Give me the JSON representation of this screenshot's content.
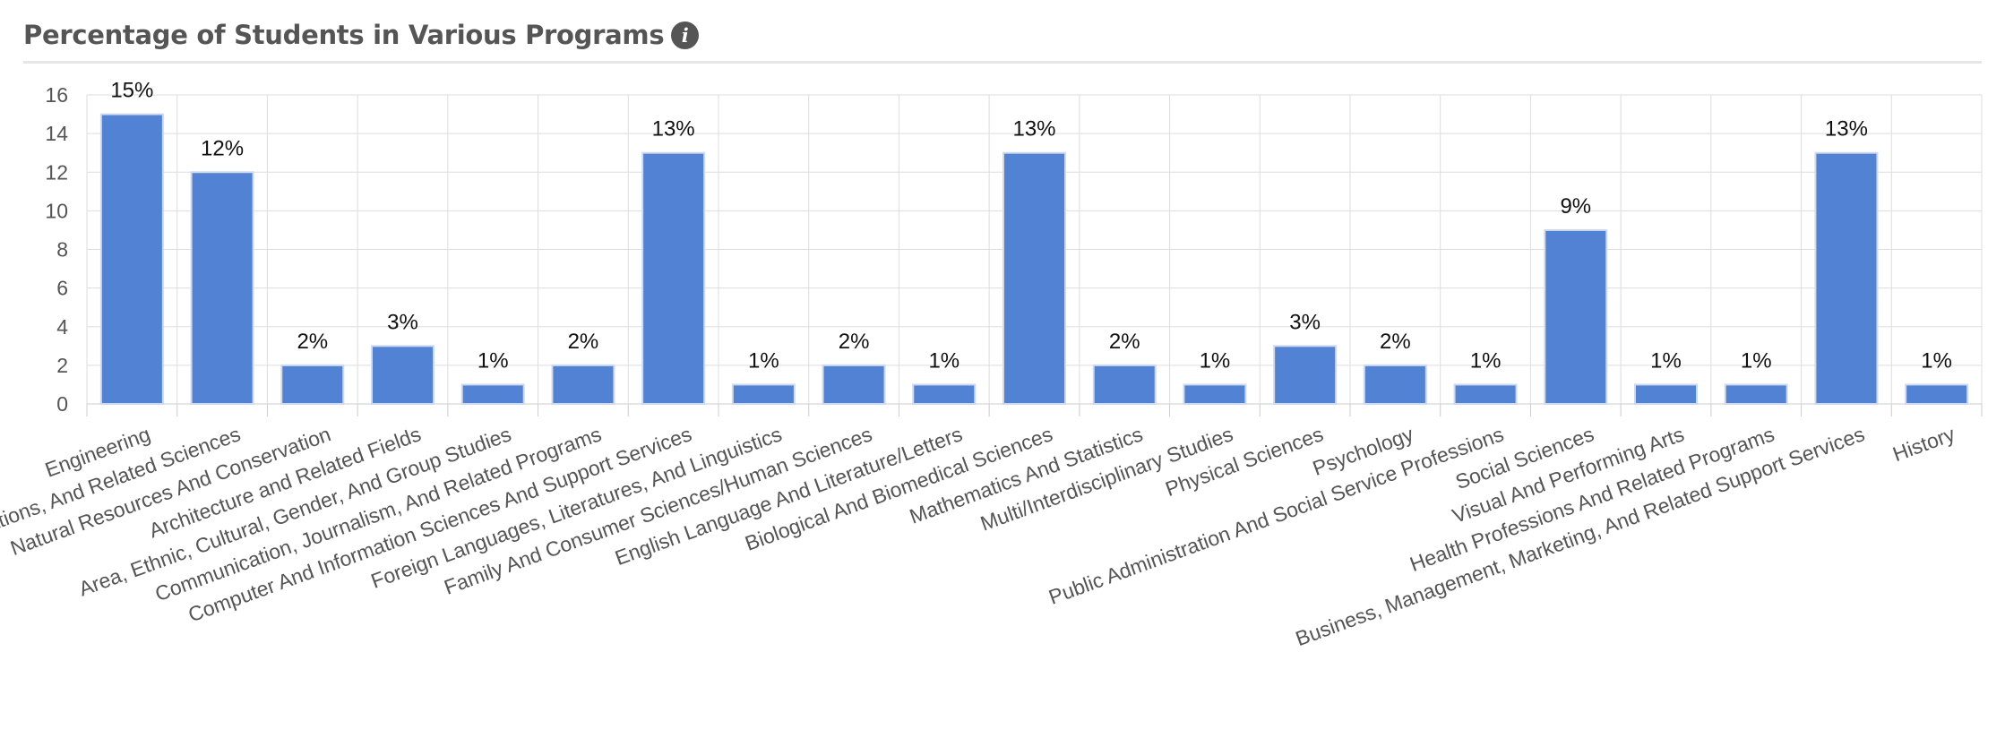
{
  "header": {
    "title": "Percentage of Students in Various Programs",
    "info_icon": "info-circle-icon"
  },
  "chart_data": {
    "type": "bar",
    "categories": [
      "Engineering",
      "Agriculture, Agriculture Operations, And Related Sciences",
      "Natural Resources And Conservation",
      "Architecture and Related Fields",
      "Area, Ethnic, Cultural, Gender, And Group Studies",
      "Communication, Journalism, And Related Programs",
      "Computer And Information Sciences And Support Services",
      "Foreign Languages, Literatures, And Linguistics",
      "Family And Consumer Sciences/Human Sciences",
      "English Language And Literature/Letters",
      "Biological And Biomedical Sciences",
      "Mathematics And Statistics",
      "Multi/Interdisciplinary Studies",
      "Physical Sciences",
      "Psychology",
      "Public Administration And Social Service Professions",
      "Social Sciences",
      "Visual And Performing Arts",
      "Health Professions And Related Programs",
      "Business, Management, Marketing, And Related Support Services",
      "History"
    ],
    "values": [
      15,
      12,
      2,
      3,
      1,
      2,
      13,
      1,
      2,
      1,
      13,
      2,
      1,
      3,
      2,
      1,
      9,
      1,
      1,
      13,
      1
    ],
    "data_labels": [
      "15%",
      "12%",
      "2%",
      "3%",
      "1%",
      "2%",
      "13%",
      "1%",
      "2%",
      "1%",
      "13%",
      "2%",
      "1%",
      "3%",
      "2%",
      "1%",
      "9%",
      "1%",
      "1%",
      "13%",
      "1%"
    ],
    "y_ticks": [
      "0",
      "2",
      "4",
      "6",
      "8",
      "10",
      "12",
      "14",
      "16"
    ],
    "ylim": [
      0,
      16
    ],
    "grid": true,
    "bar_color": "#5282d4",
    "bar_border_color": "#cfd9ee",
    "grid_color": "#dddddd"
  }
}
